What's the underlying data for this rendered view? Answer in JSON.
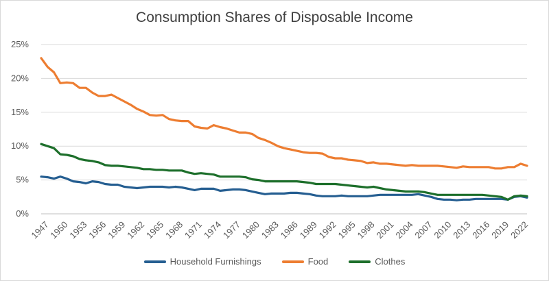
{
  "chart_data": {
    "type": "line",
    "title": "Consumption Shares of Disposable Income",
    "xlabel": "",
    "ylabel": "",
    "ylim": [
      0,
      25
    ],
    "y_ticks": [
      "0%",
      "5%",
      "10%",
      "15%",
      "20%",
      "25%"
    ],
    "y_tick_values": [
      0,
      5,
      10,
      15,
      20,
      25
    ],
    "x_range": [
      1947,
      2023
    ],
    "x_ticks": [
      "1947",
      "1950",
      "1953",
      "1956",
      "1959",
      "1962",
      "1965",
      "1968",
      "1971",
      "1974",
      "1977",
      "1980",
      "1983",
      "1986",
      "1989",
      "1992",
      "1995",
      "1998",
      "2001",
      "2004",
      "2007",
      "2010",
      "2013",
      "2016",
      "2019",
      "2022"
    ],
    "grid": true,
    "legend_position": "bottom",
    "x": [
      1947,
      1948,
      1949,
      1950,
      1951,
      1952,
      1953,
      1954,
      1955,
      1956,
      1957,
      1958,
      1959,
      1960,
      1961,
      1962,
      1963,
      1964,
      1965,
      1966,
      1967,
      1968,
      1969,
      1970,
      1971,
      1972,
      1973,
      1974,
      1975,
      1976,
      1977,
      1978,
      1979,
      1980,
      1981,
      1982,
      1983,
      1984,
      1985,
      1986,
      1987,
      1988,
      1989,
      1990,
      1991,
      1992,
      1993,
      1994,
      1995,
      1996,
      1997,
      1998,
      1999,
      2000,
      2001,
      2002,
      2003,
      2004,
      2005,
      2006,
      2007,
      2008,
      2009,
      2010,
      2011,
      2012,
      2013,
      2014,
      2015,
      2016,
      2017,
      2018,
      2019,
      2020,
      2021,
      2022,
      2023
    ],
    "series": [
      {
        "name": "Household Furnishings",
        "color": "#255e91",
        "values": [
          5.5,
          5.4,
          5.2,
          5.5,
          5.2,
          4.8,
          4.7,
          4.5,
          4.8,
          4.7,
          4.4,
          4.3,
          4.3,
          4.0,
          3.9,
          3.8,
          3.9,
          4.0,
          4.0,
          4.0,
          3.9,
          4.0,
          3.9,
          3.7,
          3.5,
          3.7,
          3.7,
          3.7,
          3.4,
          3.5,
          3.6,
          3.6,
          3.5,
          3.3,
          3.1,
          2.9,
          3.0,
          3.0,
          3.0,
          3.1,
          3.1,
          3.0,
          2.9,
          2.7,
          2.6,
          2.6,
          2.6,
          2.7,
          2.6,
          2.6,
          2.6,
          2.6,
          2.7,
          2.8,
          2.8,
          2.8,
          2.8,
          2.8,
          2.8,
          2.9,
          2.7,
          2.5,
          2.2,
          2.1,
          2.1,
          2.0,
          2.1,
          2.1,
          2.2,
          2.2,
          2.2,
          2.2,
          2.2,
          2.1,
          2.5,
          2.6,
          2.4
        ]
      },
      {
        "name": "Food",
        "color": "#ed7d31",
        "values": [
          23.0,
          21.7,
          20.9,
          19.3,
          19.4,
          19.3,
          18.6,
          18.6,
          17.9,
          17.4,
          17.4,
          17.6,
          17.1,
          16.6,
          16.1,
          15.5,
          15.1,
          14.6,
          14.5,
          14.6,
          14.0,
          13.8,
          13.7,
          13.7,
          12.9,
          12.7,
          12.6,
          13.1,
          12.8,
          12.6,
          12.3,
          12.0,
          12.0,
          11.8,
          11.2,
          10.9,
          10.5,
          10.0,
          9.7,
          9.5,
          9.3,
          9.1,
          9.0,
          9.0,
          8.9,
          8.4,
          8.2,
          8.2,
          8.0,
          7.9,
          7.8,
          7.5,
          7.6,
          7.4,
          7.4,
          7.3,
          7.2,
          7.1,
          7.2,
          7.1,
          7.1,
          7.1,
          7.1,
          7.0,
          6.9,
          6.8,
          7.0,
          6.9,
          6.9,
          6.9,
          6.9,
          6.7,
          6.7,
          6.9,
          6.9,
          7.4,
          7.1
        ]
      },
      {
        "name": "Clothes",
        "color": "#1d6f2b",
        "values": [
          10.3,
          10.0,
          9.7,
          8.8,
          8.7,
          8.5,
          8.1,
          7.9,
          7.8,
          7.6,
          7.2,
          7.1,
          7.1,
          7.0,
          6.9,
          6.8,
          6.6,
          6.6,
          6.5,
          6.5,
          6.4,
          6.4,
          6.4,
          6.1,
          5.9,
          6.0,
          5.9,
          5.8,
          5.5,
          5.5,
          5.5,
          5.5,
          5.4,
          5.1,
          5.0,
          4.8,
          4.8,
          4.8,
          4.8,
          4.8,
          4.8,
          4.7,
          4.6,
          4.4,
          4.4,
          4.4,
          4.4,
          4.3,
          4.2,
          4.1,
          4.0,
          3.9,
          4.0,
          3.8,
          3.6,
          3.5,
          3.4,
          3.3,
          3.3,
          3.3,
          3.2,
          3.0,
          2.8,
          2.8,
          2.8,
          2.8,
          2.8,
          2.8,
          2.8,
          2.8,
          2.7,
          2.6,
          2.5,
          2.1,
          2.6,
          2.7,
          2.6
        ]
      }
    ]
  }
}
